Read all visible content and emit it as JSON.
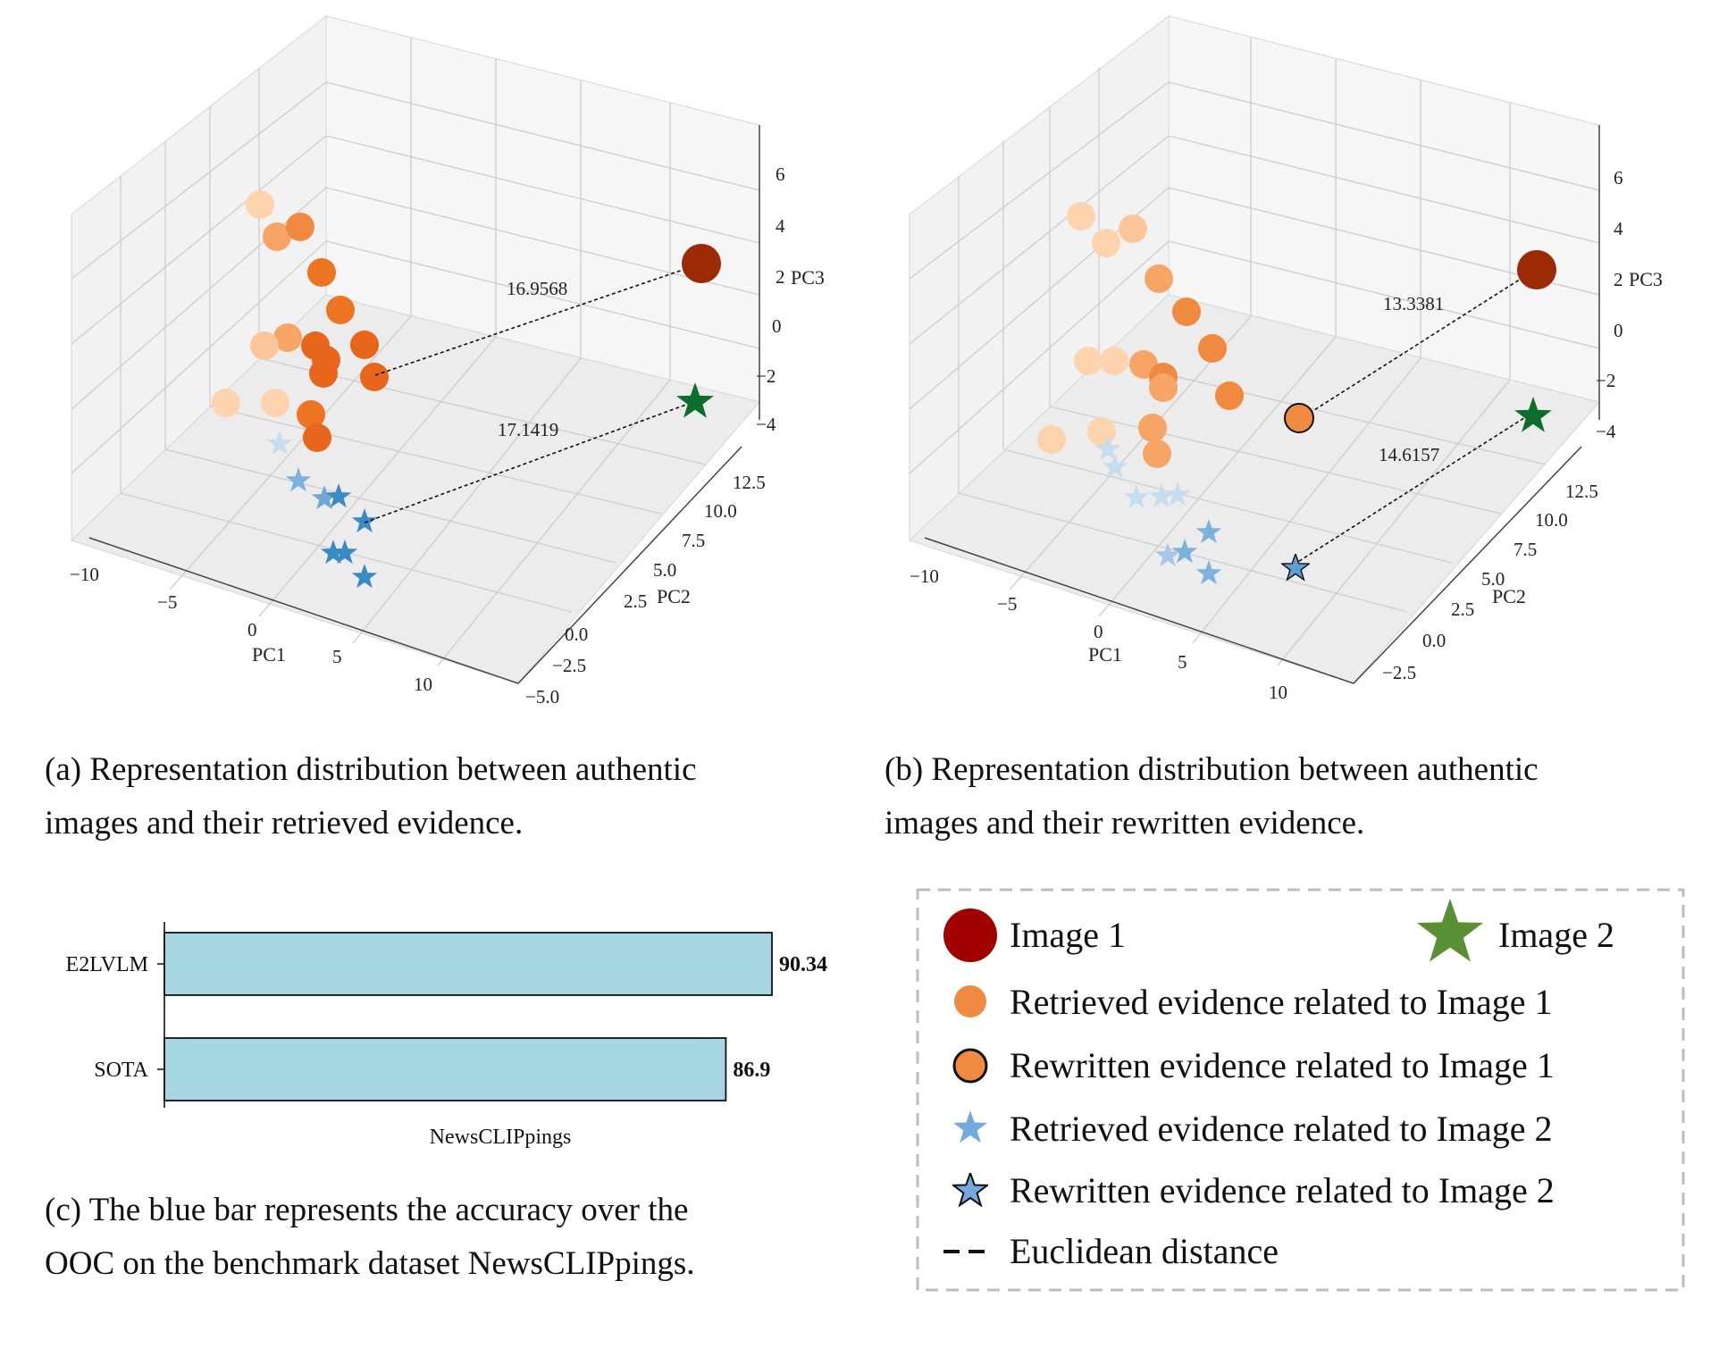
{
  "chart_data": [
    {
      "id": "panel_a",
      "type": "scatter3d",
      "xlabel": "PC1",
      "ylabel": "PC2",
      "zlabel": "PC3",
      "xticks": [
        "−10",
        "−5",
        "0",
        "5",
        "10"
      ],
      "yticks": [
        "−5.0",
        "−2.5",
        "0.0",
        "2.5",
        "5.0",
        "7.5",
        "10.0",
        "12.5"
      ],
      "zticks": [
        "−4",
        "−2",
        "0",
        "2",
        "4",
        "6"
      ],
      "distances": [
        "16.9568",
        "17.1419"
      ],
      "caption_line1": "(a) Representation distribution between authentic",
      "caption_line2": "images and their retrieved evidence.",
      "points": [
        {
          "kind": "circle",
          "shade": "light",
          "x": -5,
          "y": -3,
          "z": 1
        },
        {
          "kind": "circle",
          "shade": "light",
          "x": -3,
          "y": -3,
          "z": -1
        },
        {
          "kind": "circle",
          "shade": "medium",
          "x": -2,
          "y": -2,
          "z": 2
        },
        {
          "kind": "circle",
          "shade": "medium",
          "x": 0,
          "y": -1,
          "z": 3
        },
        {
          "kind": "circle",
          "shade": "dark",
          "x": 1,
          "y": 0,
          "z": 2
        },
        {
          "kind": "circle",
          "shade": "dark",
          "x": 2,
          "y": 0,
          "z": 1
        },
        {
          "kind": "circle",
          "shade": "dark",
          "x": 3,
          "y": 1,
          "z": 0
        },
        {
          "kind": "circle",
          "shade": "dark",
          "x": 4,
          "y": 1,
          "z": -1
        },
        {
          "kind": "star",
          "shade": "light",
          "x": -1,
          "y": 2,
          "z": -4
        },
        {
          "kind": "star",
          "shade": "medium",
          "x": 1,
          "y": 3,
          "z": -4
        },
        {
          "kind": "star",
          "shade": "dark",
          "x": 3,
          "y": 4,
          "z": -4
        }
      ]
    },
    {
      "id": "panel_b",
      "type": "scatter3d",
      "xlabel": "PC1",
      "ylabel": "PC2",
      "zlabel": "PC3",
      "xticks": [
        "−10",
        "−5",
        "0",
        "5",
        "10"
      ],
      "yticks": [
        "−2.5",
        "0.0",
        "2.5",
        "5.0",
        "7.5",
        "10.0",
        "12.5"
      ],
      "zticks": [
        "−4",
        "−2",
        "0",
        "2",
        "4",
        "6"
      ],
      "distances": [
        "13.3381",
        "14.6157"
      ],
      "caption_line1": "(b) Representation distribution between authentic",
      "caption_line2": "images and their rewritten evidence.",
      "points": [
        {
          "kind": "circle",
          "shade": "light",
          "x": -5,
          "y": -2,
          "z": 1
        },
        {
          "kind": "circle",
          "shade": "medium",
          "x": 0,
          "y": 0,
          "z": 2
        },
        {
          "kind": "circle",
          "shade": "rewritten",
          "x": 5,
          "y": 3,
          "z": -2
        },
        {
          "kind": "star",
          "shade": "light",
          "x": -1,
          "y": 2,
          "z": -4
        },
        {
          "kind": "star",
          "shade": "rewritten",
          "x": 6,
          "y": 5,
          "z": -5
        }
      ]
    },
    {
      "id": "panel_c",
      "type": "bar",
      "orientation": "horizontal",
      "categories": [
        "E2LVLM",
        "SOTA"
      ],
      "values": [
        90.34,
        86.9
      ],
      "value_labels": [
        "90.34",
        "86.9"
      ],
      "xlabel": "NewsCLIPpings",
      "xlim": [
        0,
        100
      ],
      "bar_color": "#a6d6e1",
      "caption_line1": "(c) The blue bar represents the accuracy over the",
      "caption_line2": "OOC on the benchmark dataset NewsCLIPpings."
    }
  ],
  "legend": {
    "image1": "Image 1",
    "image2": "Image 2",
    "retrieved1": "Retrieved evidence related to Image 1",
    "rewritten1": "Rewritten evidence related to Image 1",
    "retrieved2": "Retrieved evidence related to Image 2",
    "rewritten2": "Rewritten evidence related to Image 2",
    "euclid": "Euclidean distance"
  },
  "colors": {
    "image1": "#9c2a05",
    "image2": "#0b6e2c",
    "orange_dark": "#e8661b",
    "orange_mid": "#f7a567",
    "orange_light": "#fdd4ad",
    "blue_dark": "#3a8ac4",
    "blue_mid": "#7cb2dc",
    "blue_light": "#c6dcef",
    "legend_img1": "#a20000",
    "legend_img2": "#5a8f36",
    "legend_orange": "#f08a40",
    "legend_blue": "#74a9dd"
  }
}
